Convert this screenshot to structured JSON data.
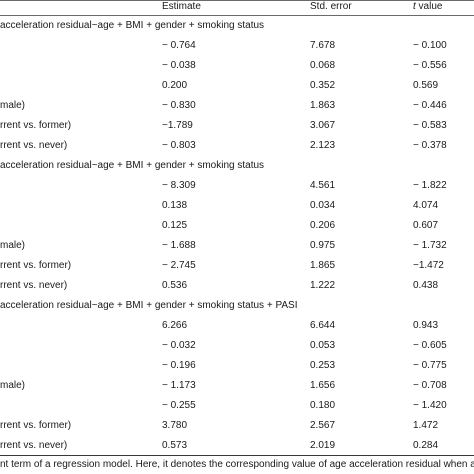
{
  "table": {
    "columns": {
      "estimate": "Estimate",
      "std_error": "Std. error",
      "t_value_italic": "t",
      "t_value_rest": " value"
    },
    "rows": [
      {
        "kind": "model",
        "label": "acceleration residual~age + BMI + gender + smoking status"
      },
      {
        "kind": "data",
        "label": "",
        "estimate": "− 0.764",
        "std_error": "7.678",
        "t_value": "− 0.100"
      },
      {
        "kind": "data",
        "label": "",
        "estimate": "− 0.038",
        "std_error": "0.068",
        "t_value": "− 0.556"
      },
      {
        "kind": "data",
        "label": "",
        "estimate": "0.200",
        "std_error": "0.352",
        "t_value": "0.569"
      },
      {
        "kind": "data",
        "label": "male)",
        "estimate": "− 0.830",
        "std_error": "1.863",
        "t_value": "− 0.446"
      },
      {
        "kind": "data",
        "label": "rrent vs. former)",
        "estimate": "−1.789",
        "std_error": "3.067",
        "t_value": "− 0.583"
      },
      {
        "kind": "data",
        "label": "rrent vs. never)",
        "estimate": "− 0.803",
        "std_error": "2.123",
        "t_value": "− 0.378"
      },
      {
        "kind": "model",
        "label": "acceleration residual~age + BMI + gender + smoking status"
      },
      {
        "kind": "data",
        "label": "",
        "estimate": "− 8.309",
        "std_error": "4.561",
        "t_value": "− 1.822"
      },
      {
        "kind": "data",
        "label": "",
        "estimate": "0.138",
        "std_error": "0.034",
        "t_value": "4.074"
      },
      {
        "kind": "data",
        "label": "",
        "estimate": "0.125",
        "std_error": "0.206",
        "t_value": "0.607"
      },
      {
        "kind": "data",
        "label": "male)",
        "estimate": "− 1.688",
        "std_error": "0.975",
        "t_value": "− 1.732"
      },
      {
        "kind": "data",
        "label": "rrent vs. former)",
        "estimate": "− 2.745",
        "std_error": "1.865",
        "t_value": "−1.472"
      },
      {
        "kind": "data",
        "label": "rrent vs. never)",
        "estimate": "0.536",
        "std_error": "1.222",
        "t_value": "0.438"
      },
      {
        "kind": "model",
        "label": "acceleration residual~age + BMI + gender + smoking status + PASI"
      },
      {
        "kind": "data",
        "label": "",
        "estimate": "6.266",
        "std_error": "6.644",
        "t_value": "0.943"
      },
      {
        "kind": "data",
        "label": "",
        "estimate": "− 0.032",
        "std_error": "0.053",
        "t_value": "− 0.605"
      },
      {
        "kind": "data",
        "label": "",
        "estimate": "− 0.196",
        "std_error": "0.253",
        "t_value": "− 0.775"
      },
      {
        "kind": "data",
        "label": "male)",
        "estimate": "− 1.173",
        "std_error": "1.656",
        "t_value": "− 0.708"
      },
      {
        "kind": "data",
        "label": "",
        "estimate": "− 0.255",
        "std_error": "0.180",
        "t_value": "− 1.420"
      },
      {
        "kind": "data",
        "label": "rrent vs. former)",
        "estimate": "3.780",
        "std_error": "2.567",
        "t_value": "1.472"
      },
      {
        "kind": "data",
        "label": "rrent vs. never)",
        "estimate": "0.573",
        "std_error": "2.019",
        "t_value": "0.284"
      }
    ]
  },
  "footnote": "nt term of a regression model. Here, it denotes the corresponding value of age acceleration residual when all the"
}
